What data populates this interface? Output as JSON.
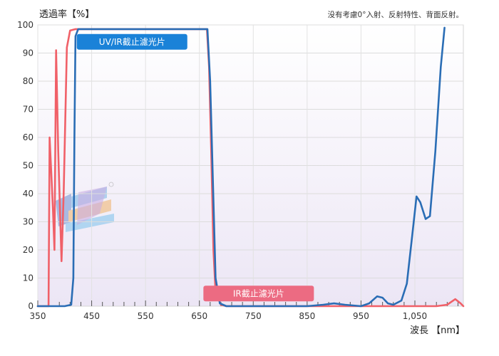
{
  "chart_data": {
    "type": "line",
    "title": "",
    "ylabel": "透過率【%】",
    "xlabel": "波長 【nm】",
    "note": "没有考慮0°入射、反射特性、背面反射。",
    "xlim": [
      350,
      1140
    ],
    "ylim": [
      0,
      100
    ],
    "xticks": [
      350,
      450,
      550,
      650,
      750,
      850,
      950,
      1050
    ],
    "xtick_labels": [
      "350",
      "450",
      "550",
      "650",
      "750",
      "850",
      "950",
      "1,050"
    ],
    "yticks": [
      0,
      10,
      20,
      30,
      40,
      50,
      60,
      70,
      80,
      90,
      100
    ],
    "grid": true,
    "series": [
      {
        "name": "UV/IR截止濾光片",
        "color": "#2a6db5",
        "points": [
          [
            350,
            0
          ],
          [
            400,
            0
          ],
          [
            412,
            0.5
          ],
          [
            416,
            10
          ],
          [
            418,
            60
          ],
          [
            420,
            96
          ],
          [
            425,
            98.5
          ],
          [
            450,
            98.5
          ],
          [
            500,
            98.5
          ],
          [
            550,
            98.5
          ],
          [
            600,
            98.5
          ],
          [
            650,
            98.5
          ],
          [
            665,
            98.5
          ],
          [
            670,
            80
          ],
          [
            675,
            45
          ],
          [
            680,
            10
          ],
          [
            688,
            1
          ],
          [
            700,
            0
          ],
          [
            800,
            0
          ],
          [
            850,
            0
          ],
          [
            880,
            0.5
          ],
          [
            900,
            1
          ],
          [
            920,
            0.5
          ],
          [
            950,
            0
          ],
          [
            965,
            1
          ],
          [
            980,
            3.5
          ],
          [
            990,
            3
          ],
          [
            1000,
            1
          ],
          [
            1010,
            0.5
          ],
          [
            1025,
            2
          ],
          [
            1035,
            8
          ],
          [
            1045,
            25
          ],
          [
            1053,
            39
          ],
          [
            1060,
            37
          ],
          [
            1070,
            31
          ],
          [
            1078,
            32
          ],
          [
            1088,
            55
          ],
          [
            1098,
            85
          ],
          [
            1105,
            99
          ]
        ]
      },
      {
        "name": "IR截止濾光片",
        "color": "#f06068",
        "points": [
          [
            350,
            0
          ],
          [
            370,
            0
          ],
          [
            372,
            60
          ],
          [
            378,
            35
          ],
          [
            381,
            20
          ],
          [
            384,
            91
          ],
          [
            388,
            55
          ],
          [
            394,
            16
          ],
          [
            398,
            40
          ],
          [
            404,
            92
          ],
          [
            410,
            98
          ],
          [
            420,
            98.5
          ],
          [
            500,
            98.5
          ],
          [
            600,
            98.5
          ],
          [
            660,
            98.5
          ],
          [
            664,
            98.5
          ],
          [
            668,
            85
          ],
          [
            672,
            55
          ],
          [
            676,
            20
          ],
          [
            680,
            5
          ],
          [
            690,
            0.5
          ],
          [
            700,
            0
          ],
          [
            800,
            0
          ],
          [
            900,
            0
          ],
          [
            1000,
            0
          ],
          [
            1090,
            0
          ],
          [
            1110,
            0.5
          ],
          [
            1125,
            2.5
          ],
          [
            1135,
            1
          ],
          [
            1140,
            0
          ]
        ]
      }
    ],
    "annotations": [
      {
        "text": "UV/IR截止濾光片",
        "color": "#1a82d8",
        "x": 525,
        "y": 94
      },
      {
        "text": "IR截止濾光片",
        "color": "#ec6b82",
        "x": 760,
        "y": 4.5
      }
    ]
  }
}
